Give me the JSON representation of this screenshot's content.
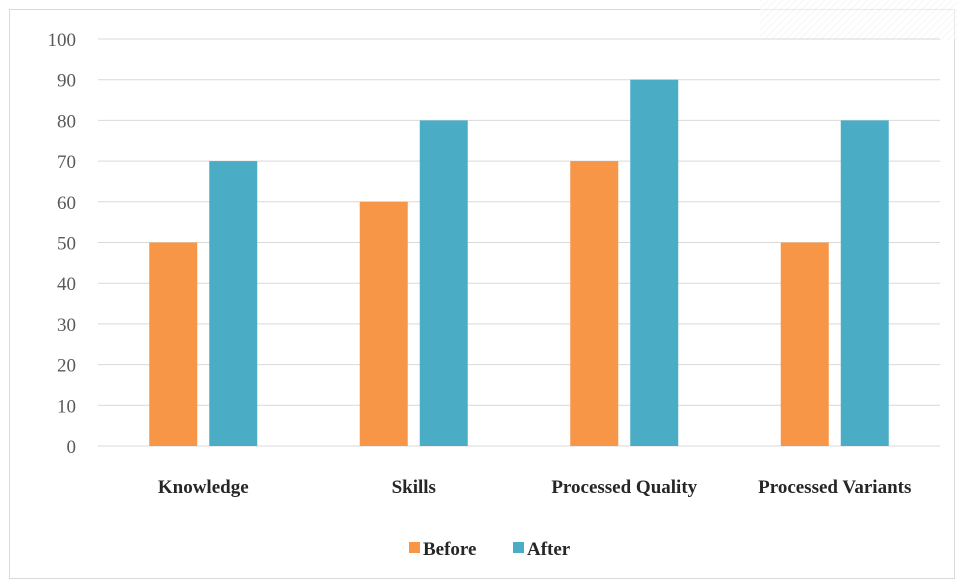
{
  "chart_data": {
    "type": "bar",
    "title": "",
    "xlabel": "",
    "ylabel": "",
    "categories": [
      "Knowledge",
      "Skills",
      "Processed Quality",
      "Processed Variants"
    ],
    "series": [
      {
        "name": "Before",
        "values": [
          50,
          60,
          70,
          50
        ],
        "color": "#f79646"
      },
      {
        "name": "After",
        "values": [
          70,
          80,
          90,
          80
        ],
        "color": "#4bacc6"
      }
    ],
    "ylim": [
      0,
      100
    ],
    "yticks": [
      0,
      10,
      20,
      30,
      40,
      50,
      60,
      70,
      80,
      90,
      100
    ],
    "grid": true,
    "gridline_color": "#d9d9d9",
    "legend_position": "bottom"
  }
}
